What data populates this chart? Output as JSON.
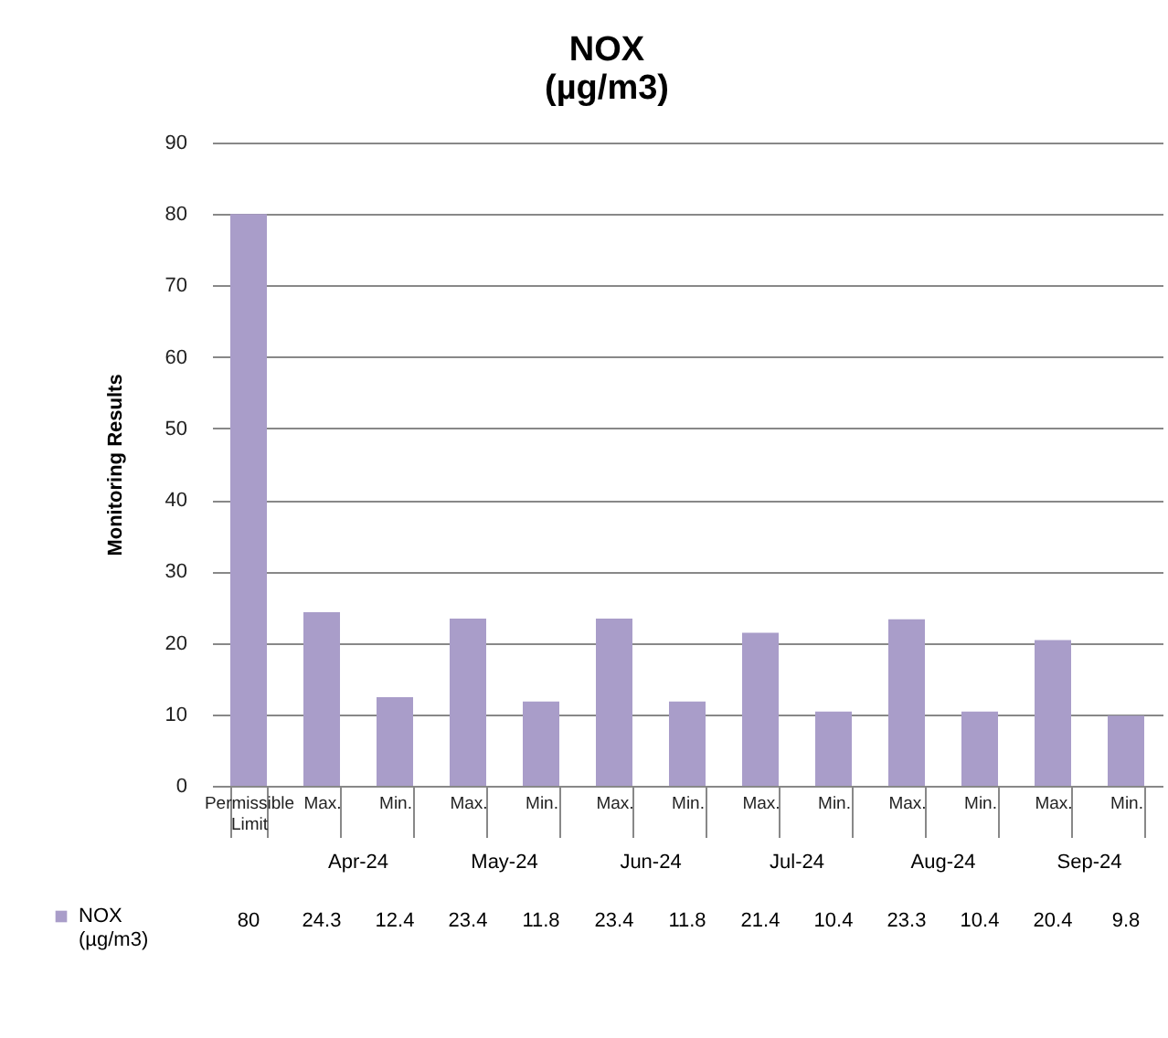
{
  "chart_data": {
    "type": "bar",
    "title": "NOX\n(µg/m3)",
    "ylabel": "Monitoring Results",
    "categories": [
      "Permissible Limit",
      "Max.",
      "Min.",
      "Max.",
      "Min.",
      "Max.",
      "Min.",
      "Max.",
      "Min.",
      "Max.",
      "Min.",
      "Max.",
      "Min."
    ],
    "series": [
      {
        "name": "NOX (µg/m3)",
        "color": "#a99dc9",
        "values": [
          80,
          24.3,
          12.4,
          23.4,
          11.8,
          23.4,
          11.8,
          21.4,
          10.4,
          23.3,
          10.4,
          20.4,
          9.8
        ]
      }
    ],
    "annotations": [
      "Apr-24",
      "May-24",
      "Jun-24",
      "Jul-24",
      "Aug-24",
      "Sep-24"
    ],
    "ylim": [
      0,
      90
    ],
    "yticks": [
      0,
      10,
      20,
      30,
      40,
      50,
      60,
      70,
      80,
      90
    ],
    "grid": "y",
    "data_labels": true,
    "legend": "bottom left"
  }
}
